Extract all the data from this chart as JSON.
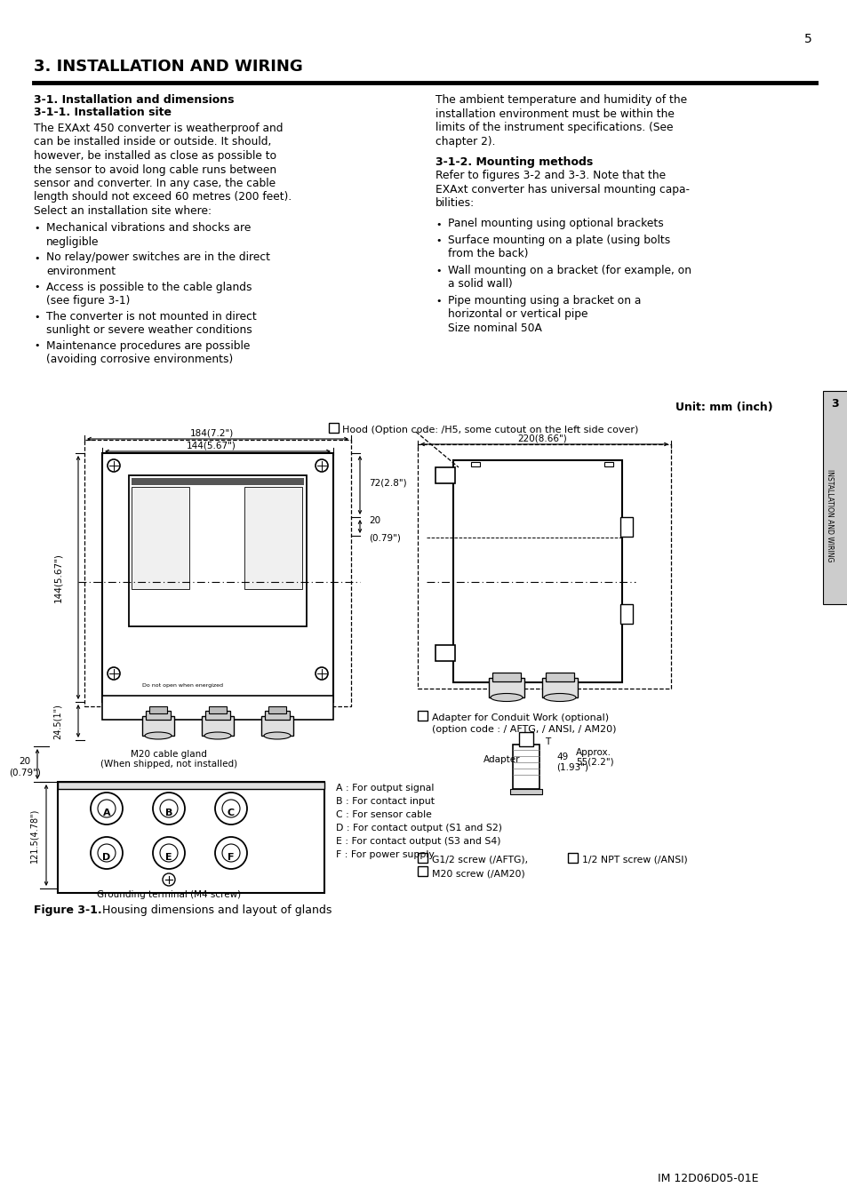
{
  "page_number": "5",
  "chapter_tab_num": "3",
  "chapter_tab_text": "INSTALLATION AND WIRING",
  "title": "3. INSTALLATION AND WIRING",
  "s1_title": "3-1. Installation and dimensions",
  "s1_subtitle": "3-1-1. Installation site",
  "s1_body": [
    "The EXAxt 450 converter is weatherproof and",
    "can be installed inside or outside. It should,",
    "however, be installed as close as possible to",
    "the sensor to avoid long cable runs between",
    "sensor and converter. In any case, the cable",
    "length should not exceed 60 metres (200 feet).",
    "Select an installation site where:"
  ],
  "s1_bullets": [
    [
      "Mechanical vibrations and shocks are",
      "negligible"
    ],
    [
      "No relay/power switches are in the direct",
      "environment"
    ],
    [
      "Access is possible to the cable glands",
      "(see figure 3-1)"
    ],
    [
      "The converter is not mounted in direct",
      "sunlight or severe weather conditions"
    ],
    [
      "Maintenance procedures are possible",
      "(avoiding corrosive environments)"
    ]
  ],
  "s2_right_top": [
    "The ambient temperature and humidity of the",
    "installation environment must be within the",
    "limits of the instrument specifications. (See",
    "chapter 2)."
  ],
  "s2_title": "3-1-2. Mounting methods",
  "s2_body": [
    "Refer to figures 3-2 and 3-3. Note that the",
    "EXAxt converter has universal mounting capa-",
    "bilities:"
  ],
  "s2_bullets": [
    [
      "Panel mounting using optional brackets"
    ],
    [
      "Surface mounting on a plate (using bolts",
      "from the back)"
    ],
    [
      "Wall mounting on a bracket (for example, on",
      "a solid wall)"
    ],
    [
      "Pipe mounting using a bracket on a",
      "horizontal or vertical pipe",
      "Size nominal 50A"
    ]
  ],
  "unit_label": "Unit: mm (inch)",
  "hood_label": "Hood (Option code: /H5, some cutout on the left side cover)",
  "dim_184": "184(7.2\")",
  "dim_144": "144(5.67\")",
  "dim_220": "220(8.66\")",
  "dim_72": "72(2.8\")",
  "dim_20a": "20",
  "dim_20b": "(0.79\")",
  "dim_144v": "144(5.67\")",
  "dim_245": "24.5(1\")",
  "dim_20_bot_a": "20",
  "dim_20_bot_b": "(0.79\")",
  "dim_121_5": "121.5(4.78\")",
  "m20_label": [
    "M20 cable gland",
    "(When shipped, not installed)"
  ],
  "adapter_label": [
    "Adapter for Conduit Work (optional)",
    "(option code : / AFTG, / ANSI, / AM20)"
  ],
  "adapter_word": "Adapter",
  "dim_t": "T",
  "dim_49a": "49",
  "dim_49b": "(1.93\")",
  "dim_approx_a": "Approx.",
  "dim_approx_b": "55(2.2\")",
  "labels_ABC": [
    "A : For output signal",
    "B : For contact input",
    "C : For sensor cable",
    "D : For contact output (S1 and S2)",
    "E : For contact output (S3 and S4)",
    "F : For power supply"
  ],
  "ground_label": "Grounding terminal (M4 screw)",
  "screw_line1": "G1/2 screw (/AFTG),",
  "screw_line1b": "1/2 NPT screw (/ANSI)",
  "screw_line2": "M20 screw (/AM20)",
  "figure_caption_bold": "Figure 3-1.",
  "figure_caption_rest": "   Housing dimensions and layout of glands",
  "im_number": "IM 12D06D05-01E",
  "bg_color": "#ffffff",
  "text_color": "#000000"
}
